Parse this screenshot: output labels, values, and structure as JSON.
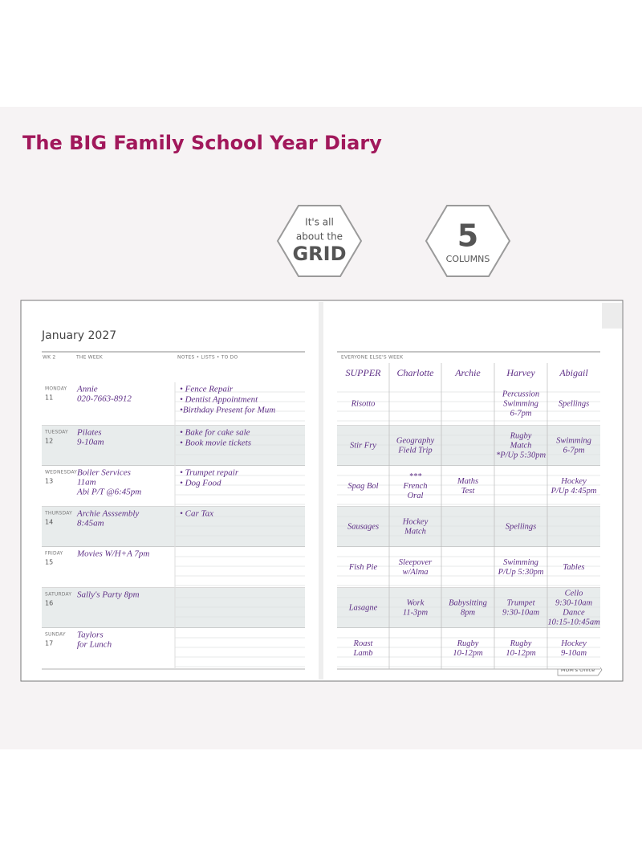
{
  "header": {
    "title": "The BIG Family School Year Diary"
  },
  "badges": [
    {
      "lines": [
        "It's all",
        "about the",
        "GRID"
      ]
    },
    {
      "lines": [
        "5",
        "COLUMNS"
      ]
    }
  ],
  "diary": {
    "month": "January 2027",
    "week": "WK 2",
    "week_heading": "THE WEEK",
    "notes_heading": "NOTES • LISTS • TO DO",
    "days": [
      {
        "day": "MONDAY",
        "date": "11",
        "entries": [
          "Annie",
          "020-7663-8912"
        ],
        "notes": [
          "• Fence Repair",
          "• Dentist Appointment",
          "•Birthday Present for Mum"
        ]
      },
      {
        "day": "TUESDAY",
        "date": "12",
        "entries": [
          "Pilates",
          "9-10am"
        ],
        "notes": [
          "• Bake for cake sale",
          "• Book movie tickets"
        ]
      },
      {
        "day": "WEDNESDAY",
        "date": "13",
        "entries": [
          "Boiler Services",
          "11am",
          "Abi P/T @6:45pm"
        ],
        "notes": [
          "• Trumpet repair",
          "• Dog Food"
        ]
      },
      {
        "day": "THURSDAY",
        "date": "14",
        "entries": [
          "Archie Asssembly",
          "8:45am"
        ],
        "notes": [
          "• Car Tax"
        ]
      },
      {
        "day": "FRIDAY",
        "date": "15",
        "entries": [
          "Movies W/H+A 7pm"
        ],
        "notes": []
      },
      {
        "day": "SATURDAY",
        "date": "16",
        "entries": [
          "Sally's Party 8pm"
        ],
        "notes": []
      },
      {
        "day": "SUNDAY",
        "date": "17",
        "entries": [
          "Taylors",
          "for Lunch"
        ],
        "notes": []
      }
    ],
    "others_heading": "EVERYONE ELSE'S WEEK",
    "columns": [
      "SUPPER",
      "Charlotte",
      "Archie",
      "Harvey",
      "Abigail"
    ],
    "grid": [
      [
        [
          "Risotto"
        ],
        [],
        [],
        [
          "Percussion",
          "Swimming",
          "6-7pm"
        ],
        [
          "Spellings"
        ]
      ],
      [
        [
          "Stir Fry"
        ],
        [
          "Geography",
          "Field Trip"
        ],
        [],
        [
          "Rugby",
          "Match",
          "*P/Up 5:30pm"
        ],
        [
          "Swimming",
          "6-7pm"
        ]
      ],
      [
        [
          "Spag Bol"
        ],
        [
          "***",
          "French",
          "Oral"
        ],
        [
          "Maths",
          "Test"
        ],
        [],
        [
          "Hockey",
          "P/Up 4:45pm"
        ]
      ],
      [
        [
          "Sausages"
        ],
        [
          "Hockey",
          "Match"
        ],
        [],
        [
          "Spellings"
        ],
        []
      ],
      [
        [
          "Fish Pie"
        ],
        [
          "Sleepover",
          "w/Alma"
        ],
        [],
        [
          "Swimming",
          "P/Up 5:30pm"
        ],
        [
          "Tables"
        ]
      ],
      [
        [
          "Lasagne"
        ],
        [
          "Work",
          "11-3pm"
        ],
        [
          "Babysitting",
          "8pm"
        ],
        [
          "Trumpet",
          "9:30-10am"
        ],
        [
          "Cello",
          "9:30-10am",
          "Dance",
          "10:15-10:45am"
        ]
      ],
      [
        [
          "Roast",
          "Lamb"
        ],
        [],
        [
          "Rugby",
          "10-12pm"
        ],
        [
          "Rugby",
          "10-12pm"
        ],
        [
          "Hockey",
          "9-10am"
        ]
      ]
    ],
    "tab": "MUM's Office"
  }
}
